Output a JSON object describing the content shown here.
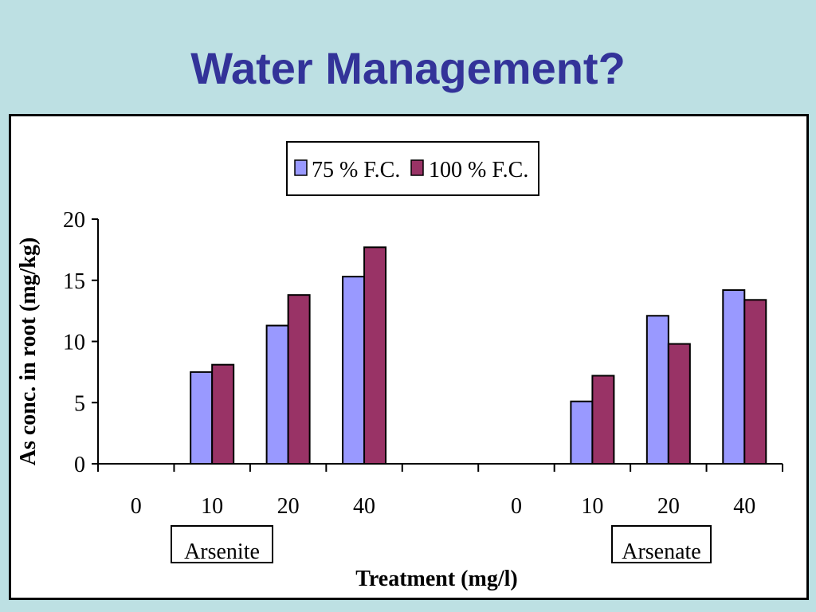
{
  "slide": {
    "title": "Water Management?"
  },
  "colors": {
    "background": "#bde0e3",
    "title": "#333399"
  },
  "chart_data": {
    "type": "bar",
    "categories": [
      "0",
      "10",
      "20",
      "40",
      "0",
      "10",
      "20",
      "40"
    ],
    "groups": [
      {
        "label": "Arsenite",
        "category_indices": [
          0,
          1,
          2,
          3
        ]
      },
      {
        "label": "Arsenate",
        "category_indices": [
          4,
          5,
          6,
          7
        ]
      }
    ],
    "series": [
      {
        "name": "75 % F.C.",
        "color": "#9999ff",
        "values": [
          0,
          7.5,
          11.3,
          15.3,
          0,
          5.1,
          12.1,
          14.2
        ]
      },
      {
        "name": "100 % F.C.",
        "color": "#993366",
        "values": [
          0,
          8.1,
          13.8,
          17.7,
          0,
          7.2,
          9.8,
          13.4
        ]
      }
    ],
    "title": "",
    "xlabel": "Treatment (mg/l)",
    "ylabel": "As conc. in root (mg/kg)",
    "ylim": [
      0,
      20
    ],
    "yticks": [
      "0",
      "5",
      "10",
      "15",
      "20"
    ],
    "grid": false,
    "legend_position": "top-center"
  }
}
